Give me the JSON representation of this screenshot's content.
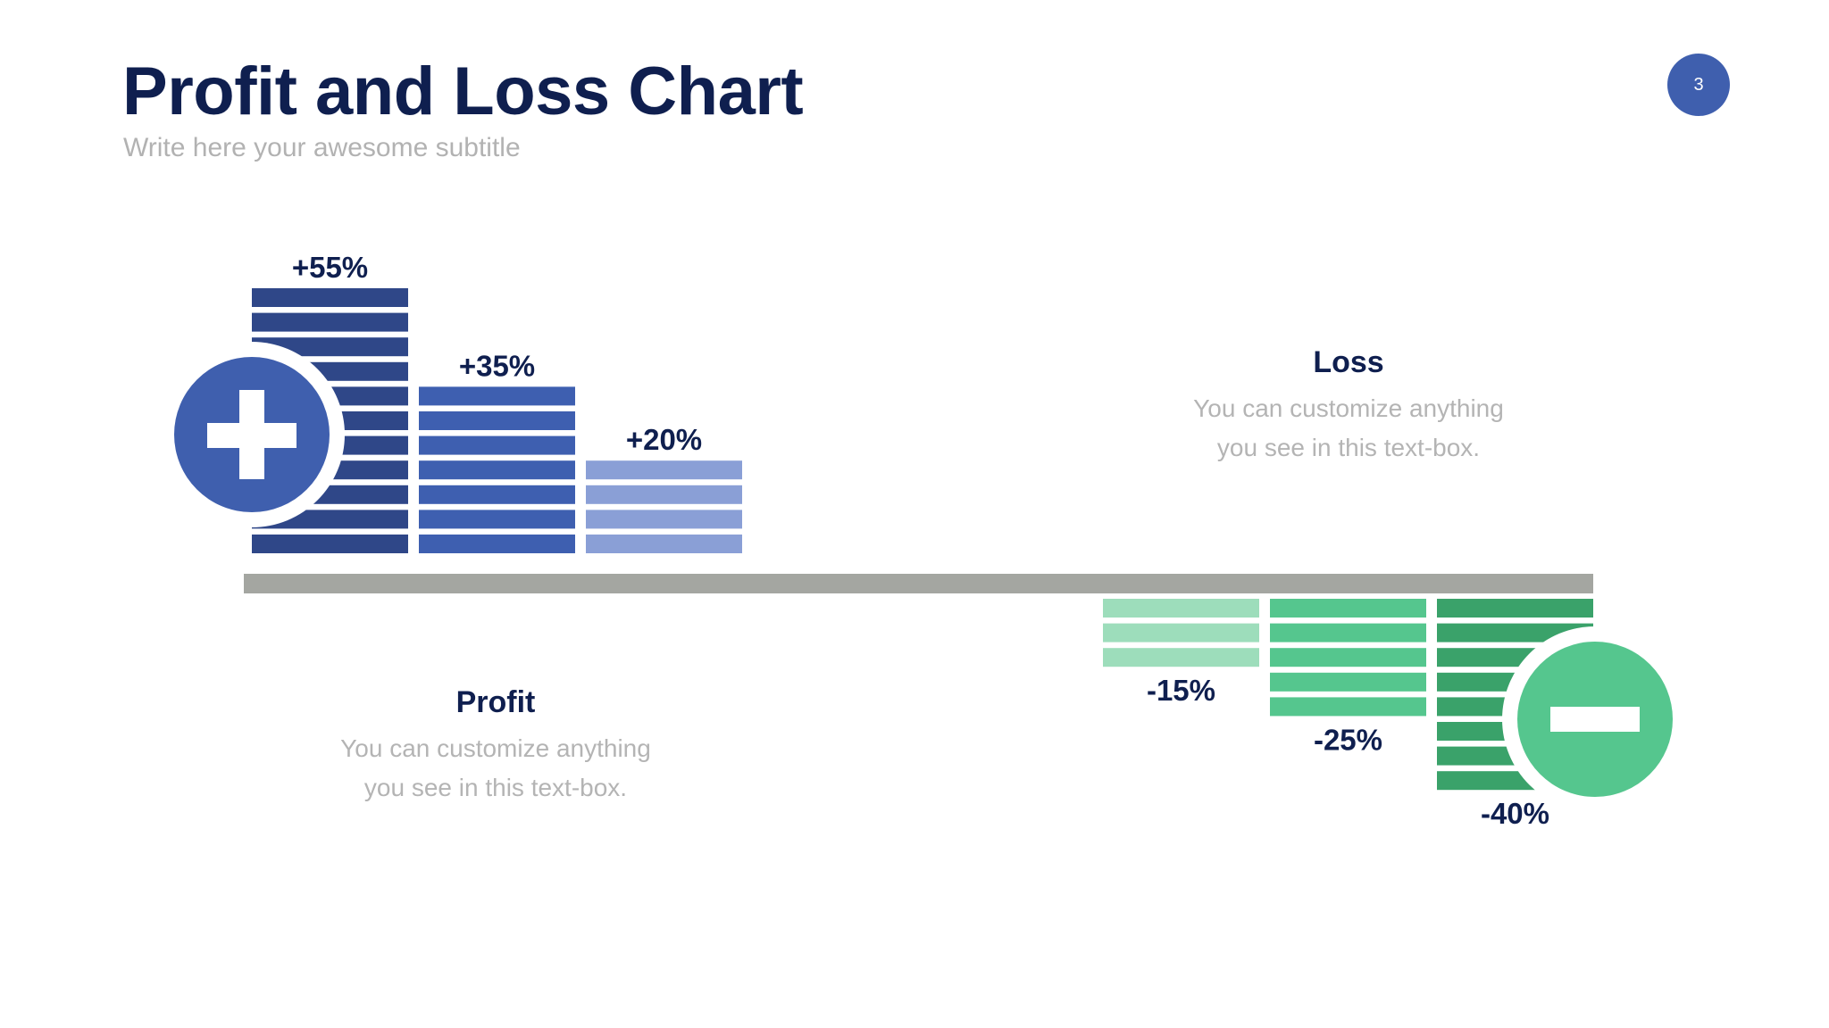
{
  "slide": {
    "title": "Profit and Loss Chart",
    "subtitle": "Write here your awesome subtitle",
    "page_number": "3"
  },
  "colors": {
    "title": "#0f1f4f",
    "badge": "#3f5fae",
    "axis": "#a4a6a1",
    "muted_text": "#b4b4b4",
    "profit_bars": [
      "#2f4788",
      "#3e5fb0",
      "#8a9fd6"
    ],
    "loss_bars": [
      "#9dddbb",
      "#55c68e",
      "#3aa26a"
    ],
    "plus_circle": "#3f5fae",
    "minus_circle": "#55c68e"
  },
  "icons": {
    "plus": "plus-icon",
    "minus": "minus-icon"
  },
  "profit": {
    "heading": "Profit",
    "body_line1": "You can customize anything",
    "body_line2": "you see in this text-box."
  },
  "loss": {
    "heading": "Loss",
    "body_line1": "You can customize anything",
    "body_line2": "you see in this text-box."
  },
  "chart_data": {
    "type": "bar",
    "series": [
      {
        "values": [
          55,
          35,
          20
        ],
        "labels": [
          "+55%",
          "+35%",
          "+20%"
        ]
      },
      {
        "values": [
          -15,
          -25,
          -40
        ],
        "labels": [
          "-15%",
          "-25%",
          "-40%"
        ]
      }
    ],
    "value_per_segment": 5,
    "title": "",
    "xlabel": "",
    "ylabel": "",
    "grid": false,
    "legend": "none"
  }
}
